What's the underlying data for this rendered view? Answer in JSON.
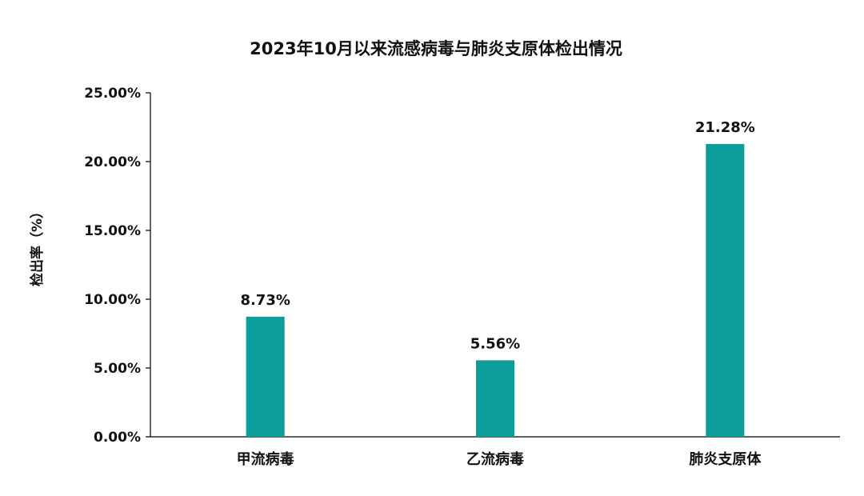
{
  "chart_data": {
    "type": "bar",
    "title": "2023年10月以来流感病毒与肺炎支原体检出情况",
    "xlabel": "",
    "ylabel": "检出率（%）",
    "categories": [
      "甲流病毒",
      "乙流病毒",
      "肺炎支原体"
    ],
    "values": [
      8.73,
      5.56,
      21.28
    ],
    "data_labels": [
      "8.73%",
      "5.56%",
      "21.28%"
    ],
    "ylim": [
      0,
      25
    ],
    "yticks": [
      0,
      5,
      10,
      15,
      20,
      25
    ],
    "ytick_labels": [
      "0.00%",
      "5.00%",
      "10.00%",
      "15.00%",
      "20.00%",
      "25.00%"
    ],
    "bar_color": "#0b9e9b",
    "grid": false,
    "legend": "none"
  }
}
